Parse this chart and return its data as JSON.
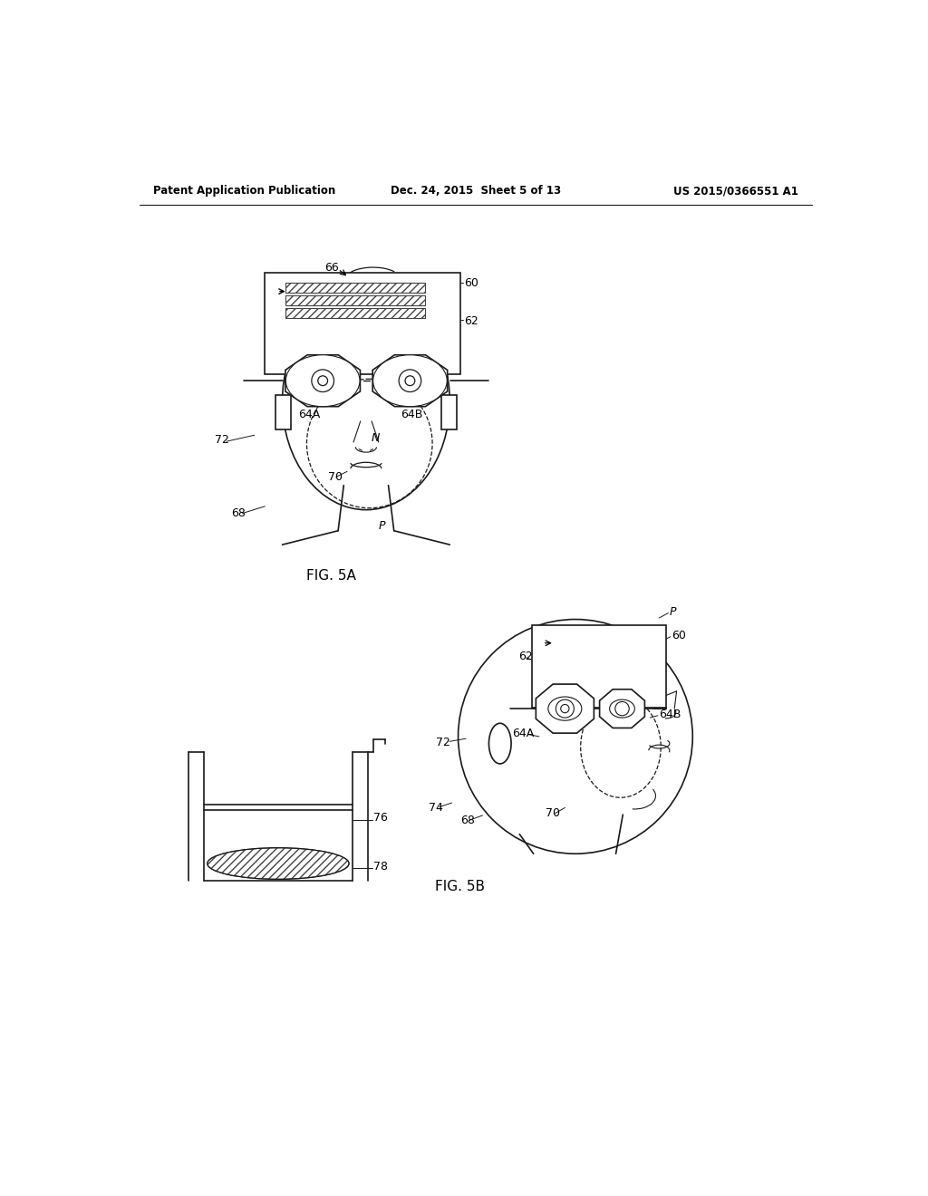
{
  "header_left": "Patent Application Publication",
  "header_mid": "Dec. 24, 2015  Sheet 5 of 13",
  "header_right": "US 2015/0366551 A1",
  "fig5a_label": "FIG. 5A",
  "fig5b_label": "FIG. 5B",
  "bg_color": "#ffffff",
  "lc": "#1a1a1a",
  "lw": 1.2,
  "fs": 9,
  "fig_fs": 11,
  "hdr_fs": 8.5
}
